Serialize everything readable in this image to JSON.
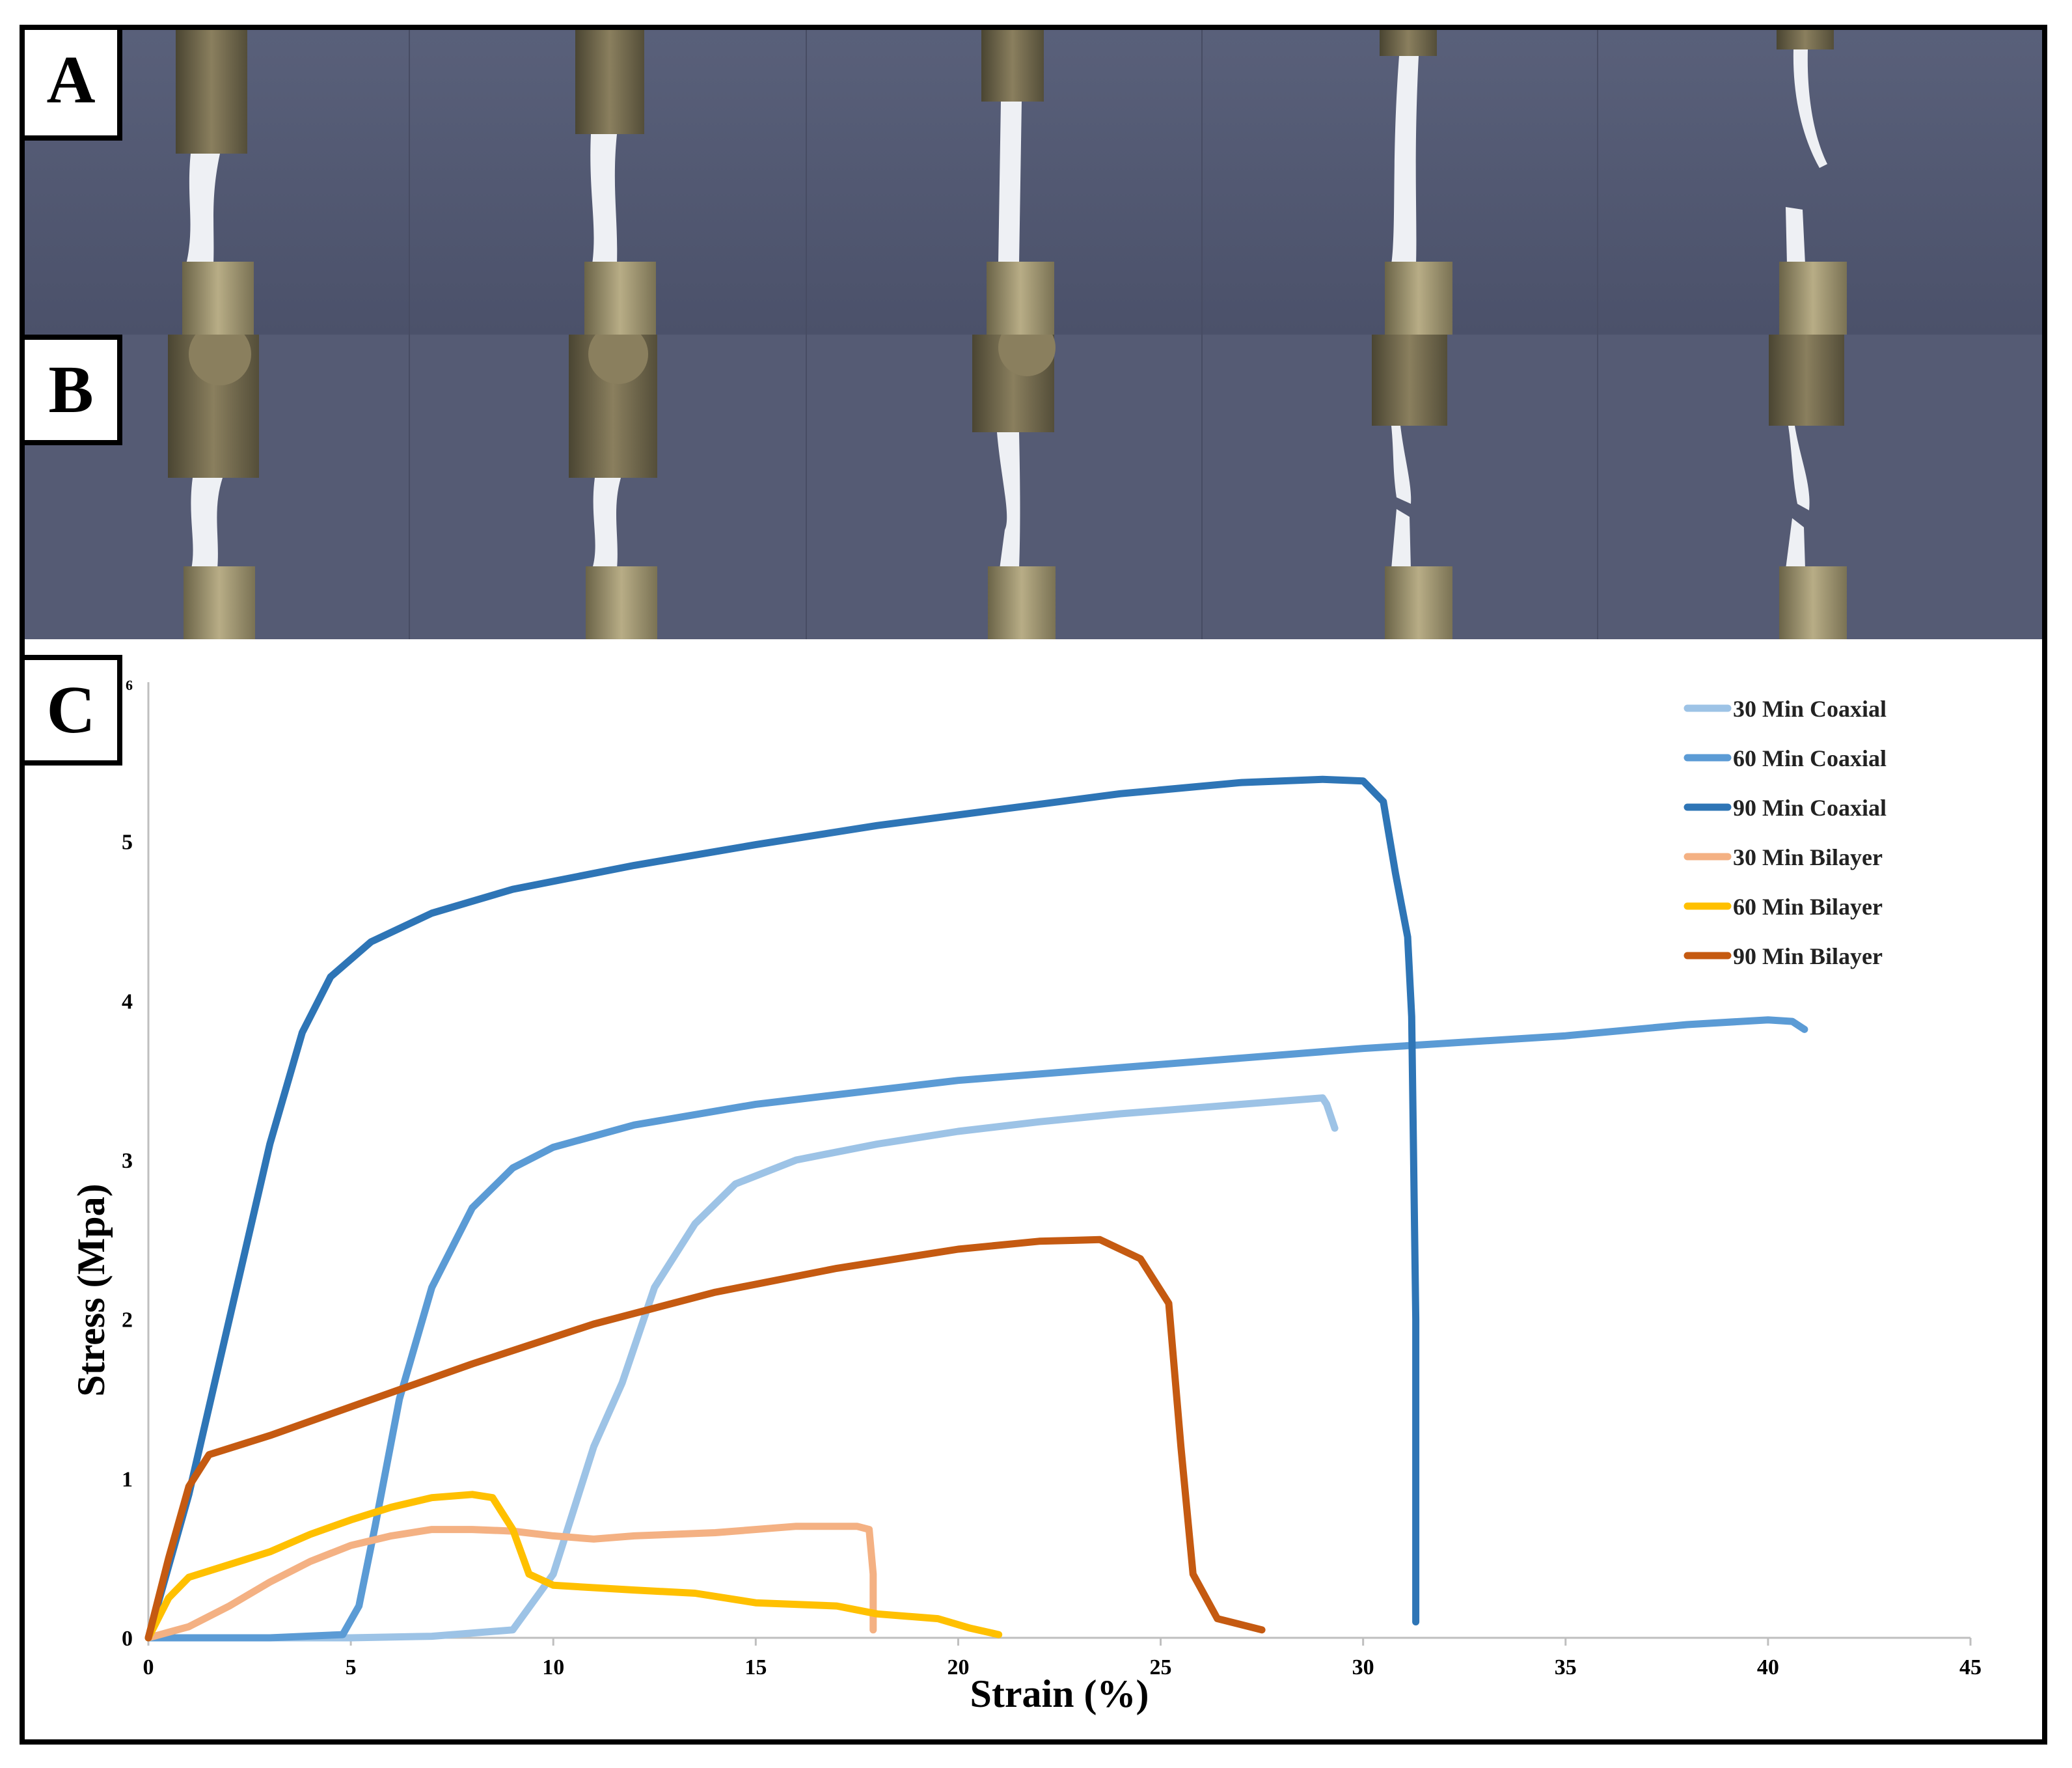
{
  "panels": {
    "a_label": "A",
    "b_label": "B",
    "c_label": "C"
  },
  "chart_data": {
    "type": "line",
    "title": "",
    "xlabel": "Strain (%)",
    "ylabel": "Stress (Mpa)",
    "xlim": [
      0,
      45
    ],
    "ylim": [
      0,
      6
    ],
    "xticks": [
      0,
      5,
      10,
      15,
      20,
      25,
      30,
      35,
      40,
      45
    ],
    "yticks": [
      0,
      1,
      2,
      3,
      4,
      5,
      6
    ],
    "grid": false,
    "legend_position": "top-right",
    "series": [
      {
        "name": "30 Min Coaxial",
        "color": "#9dc3e6",
        "points": [
          [
            0,
            0
          ],
          [
            5,
            0
          ],
          [
            7,
            0.01
          ],
          [
            9,
            0.05
          ],
          [
            10,
            0.4
          ],
          [
            10.5,
            0.8
          ],
          [
            11,
            1.2
          ],
          [
            11.7,
            1.6
          ],
          [
            12.5,
            2.2
          ],
          [
            13.5,
            2.6
          ],
          [
            14.5,
            2.85
          ],
          [
            16,
            3.0
          ],
          [
            18,
            3.1
          ],
          [
            20,
            3.18
          ],
          [
            22,
            3.24
          ],
          [
            24,
            3.29
          ],
          [
            26,
            3.33
          ],
          [
            28,
            3.37
          ],
          [
            29,
            3.39
          ],
          [
            29.1,
            3.35
          ],
          [
            29.3,
            3.2
          ]
        ]
      },
      {
        "name": "60 Min Coaxial",
        "color": "#5b9bd5",
        "points": [
          [
            0,
            0
          ],
          [
            3,
            0
          ],
          [
            4.8,
            0.02
          ],
          [
            5.2,
            0.2
          ],
          [
            5.6,
            0.7
          ],
          [
            6.2,
            1.5
          ],
          [
            7,
            2.2
          ],
          [
            8,
            2.7
          ],
          [
            9,
            2.95
          ],
          [
            10,
            3.08
          ],
          [
            12,
            3.22
          ],
          [
            15,
            3.35
          ],
          [
            20,
            3.5
          ],
          [
            25,
            3.6
          ],
          [
            30,
            3.7
          ],
          [
            35,
            3.78
          ],
          [
            38,
            3.85
          ],
          [
            40,
            3.88
          ],
          [
            40.6,
            3.87
          ],
          [
            40.9,
            3.82
          ]
        ]
      },
      {
        "name": "90 Min Coaxial",
        "color": "#2e75b6",
        "points": [
          [
            0,
            0
          ],
          [
            1,
            0.9
          ],
          [
            2,
            2.0
          ],
          [
            3,
            3.1
          ],
          [
            3.8,
            3.8
          ],
          [
            4.5,
            4.15
          ],
          [
            5.5,
            4.37
          ],
          [
            7,
            4.55
          ],
          [
            9,
            4.7
          ],
          [
            12,
            4.85
          ],
          [
            15,
            4.98
          ],
          [
            18,
            5.1
          ],
          [
            21,
            5.2
          ],
          [
            24,
            5.3
          ],
          [
            27,
            5.37
          ],
          [
            29,
            5.39
          ],
          [
            30,
            5.38
          ],
          [
            30.5,
            5.25
          ],
          [
            30.8,
            4.8
          ],
          [
            31.1,
            4.4
          ],
          [
            31.2,
            3.9
          ],
          [
            31.3,
            2.0
          ],
          [
            31.3,
            0.1
          ]
        ]
      },
      {
        "name": "30 Min Bilayer",
        "color": "#f4b183",
        "points": [
          [
            0,
            0
          ],
          [
            1,
            0.07
          ],
          [
            2,
            0.2
          ],
          [
            3,
            0.35
          ],
          [
            4,
            0.48
          ],
          [
            5,
            0.58
          ],
          [
            6,
            0.64
          ],
          [
            7,
            0.68
          ],
          [
            8,
            0.68
          ],
          [
            9,
            0.67
          ],
          [
            10,
            0.64
          ],
          [
            11,
            0.62
          ],
          [
            12,
            0.64
          ],
          [
            14,
            0.66
          ],
          [
            16,
            0.7
          ],
          [
            17.5,
            0.7
          ],
          [
            17.8,
            0.68
          ],
          [
            17.9,
            0.4
          ],
          [
            17.9,
            0.05
          ]
        ]
      },
      {
        "name": "60 Min Bilayer",
        "color": "#ffc000",
        "points": [
          [
            0,
            0
          ],
          [
            0.5,
            0.25
          ],
          [
            1,
            0.38
          ],
          [
            2,
            0.46
          ],
          [
            3,
            0.54
          ],
          [
            4,
            0.65
          ],
          [
            5,
            0.74
          ],
          [
            6,
            0.82
          ],
          [
            7,
            0.88
          ],
          [
            8,
            0.9
          ],
          [
            8.5,
            0.88
          ],
          [
            9,
            0.68
          ],
          [
            9.4,
            0.4
          ],
          [
            10,
            0.33
          ],
          [
            12,
            0.3
          ],
          [
            13.5,
            0.28
          ],
          [
            15,
            0.22
          ],
          [
            17,
            0.2
          ],
          [
            18,
            0.15
          ],
          [
            19.5,
            0.12
          ],
          [
            20.3,
            0.06
          ],
          [
            21,
            0.02
          ]
        ]
      },
      {
        "name": "90 Min Bilayer",
        "color": "#c55a11",
        "points": [
          [
            0,
            0
          ],
          [
            0.5,
            0.5
          ],
          [
            1,
            0.95
          ],
          [
            1.5,
            1.15
          ],
          [
            3,
            1.27
          ],
          [
            5,
            1.45
          ],
          [
            8,
            1.72
          ],
          [
            11,
            1.97
          ],
          [
            14,
            2.17
          ],
          [
            17,
            2.32
          ],
          [
            20,
            2.44
          ],
          [
            22,
            2.49
          ],
          [
            23.5,
            2.5
          ],
          [
            24.5,
            2.38
          ],
          [
            25.2,
            2.1
          ],
          [
            25.5,
            1.2
          ],
          [
            25.8,
            0.4
          ],
          [
            26.4,
            0.12
          ],
          [
            27.5,
            0.05
          ]
        ]
      }
    ]
  }
}
